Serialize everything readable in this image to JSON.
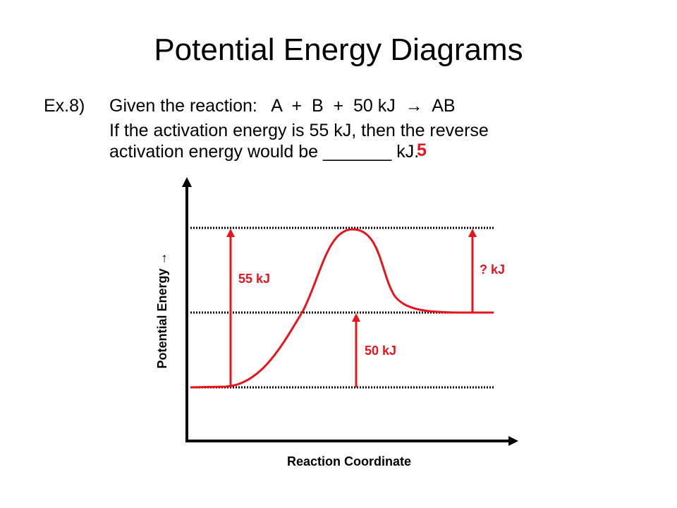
{
  "header": {
    "title": "Potential Energy Diagrams"
  },
  "problem": {
    "label": "Ex.8)",
    "lines": [
      "Given the reaction:   A  +  B  +  50 kJ  →  AB",
      "If the activation energy is 55 kJ, then the reverse",
      "activation energy would be _______ kJ."
    ],
    "answer": "5"
  },
  "diagram": {
    "labels": [
      "55 kJ",
      "50 kJ",
      "? kJ"
    ],
    "x_label": "Reaction Coordinate",
    "y_label": "Potential Energy →"
  }
}
